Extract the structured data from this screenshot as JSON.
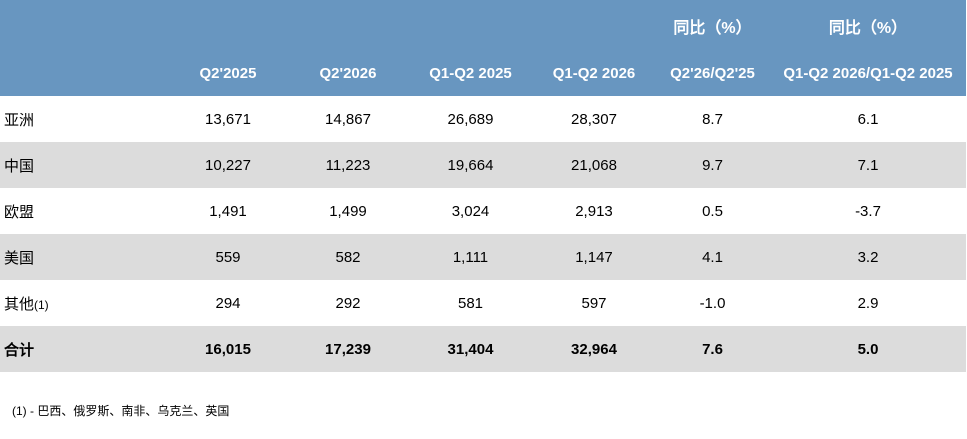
{
  "table": {
    "header_top": [
      "",
      "",
      "",
      "",
      "",
      "同比（%）",
      "同比（%）"
    ],
    "header": [
      "",
      "Q2'2025",
      "Q2'2026",
      "Q1-Q2 2025",
      "Q1-Q2 2026",
      "Q2'26/Q2'25",
      "Q1-Q2 2026/Q1-Q2 2025"
    ],
    "rows": [
      {
        "label": "亚洲",
        "label_note": "",
        "values": [
          "13,671",
          "14,867",
          "26,689",
          "28,307",
          "8.7",
          "6.1"
        ]
      },
      {
        "label": "中国",
        "label_note": "",
        "values": [
          "10,227",
          "11,223",
          "19,664",
          "21,068",
          "9.7",
          "7.1"
        ]
      },
      {
        "label": "欧盟",
        "label_note": "",
        "values": [
          "1,491",
          "1,499",
          "3,024",
          "2,913",
          "0.5",
          "-3.7"
        ]
      },
      {
        "label": "美国",
        "label_note": "",
        "values": [
          "559",
          "582",
          "1,111",
          "1,147",
          "4.1",
          "3.2"
        ]
      },
      {
        "label": "其他",
        "label_note": "(1)",
        "values": [
          "294",
          "292",
          "581",
          "597",
          "-1.0",
          "2.9"
        ]
      }
    ],
    "total": {
      "label": "合计",
      "values": [
        "16,015",
        "17,239",
        "31,404",
        "32,964",
        "7.6",
        "5.0"
      ]
    }
  },
  "footnote": "(1) - 巴西、俄罗斯、南非、乌克兰、英国",
  "colors": {
    "header_bg": "#6896c0",
    "header_text": "#ffffff",
    "stripe_bg": "#dcdcdc"
  }
}
